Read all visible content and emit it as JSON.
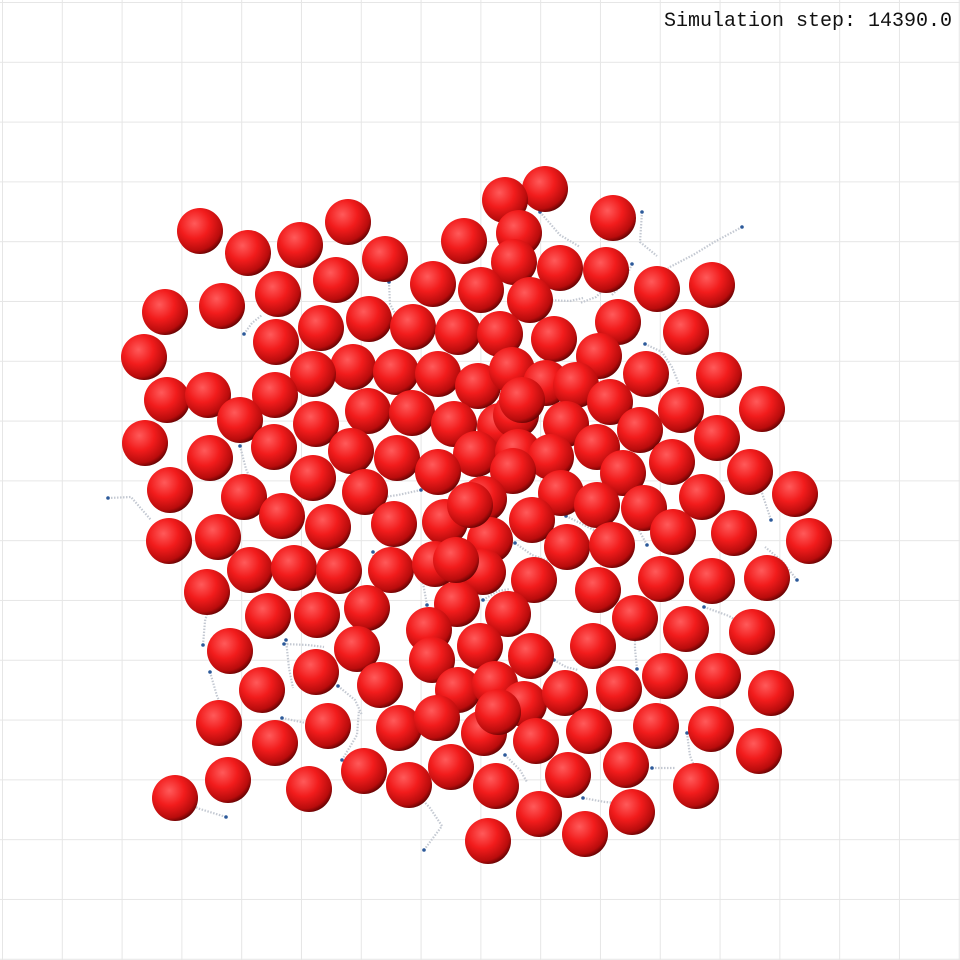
{
  "hud": {
    "step_prefix": "Simulation step:",
    "step_value": "14390.0"
  },
  "colors": {
    "background": "#ffffff",
    "grid": "#e6e6e6",
    "particle": "#ee1c1c",
    "particle_highlight": "#ff5a5a",
    "particle_shadow": "#5a0000",
    "trail": "#c4c9d2",
    "trail_head": "#2d5a9a"
  },
  "simulation": {
    "particle_count": 175,
    "particle_shape": "sphere"
  }
}
